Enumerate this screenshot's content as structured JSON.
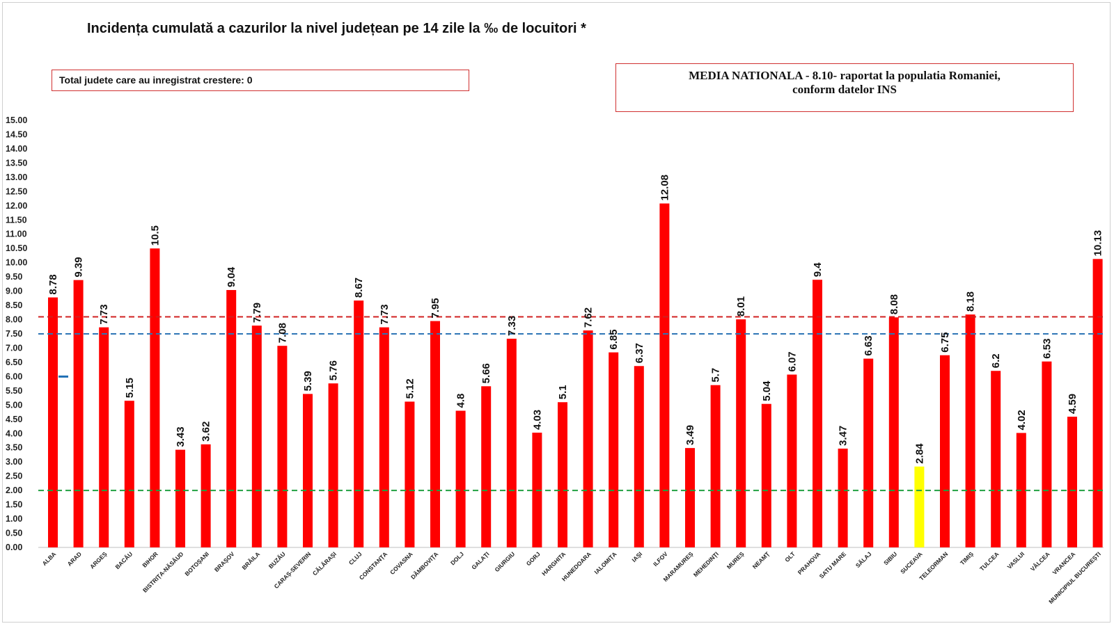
{
  "chart_data": {
    "type": "bar",
    "title": "Incidența cumulată a cazurilor la nivel județean pe 14 zile la ‰ de locuitori *",
    "xlabel": "",
    "ylabel": "",
    "ylim": [
      0,
      15
    ],
    "ytick_step": 0.5,
    "grid": false,
    "categories": [
      "ALBA",
      "ARAD",
      "ARGEȘ",
      "BACĂU",
      "BIHOR",
      "BISTRIȚA-NĂSĂUD",
      "BOTOȘANI",
      "BRAȘOV",
      "BRĂILA",
      "BUZĂU",
      "CARAȘ-SEVERIN",
      "CĂLĂRAȘI",
      "CLUJ",
      "CONSTANȚA",
      "COVASNA",
      "DÂMBOVIȚA",
      "DOLJ",
      "GALAȚI",
      "GIURGIU",
      "GORJ",
      "HARGHITA",
      "HUNEDOARA",
      "IALOMIȚA",
      "IAȘI",
      "ILFOV",
      "MARAMUREȘ",
      "MEHEDINȚI",
      "MUREȘ",
      "NEAMȚ",
      "OLT",
      "PRAHOVA",
      "SATU MARE",
      "SĂLAJ",
      "SIBIU",
      "SUCEAVA",
      "TELEORMAN",
      "TIMIȘ",
      "TULCEA",
      "VASLUI",
      "VÂLCEA",
      "VRANCEA",
      "MUNICIPIUL BUCUREȘTI"
    ],
    "values": [
      8.78,
      9.39,
      7.73,
      5.15,
      10.5,
      3.43,
      3.62,
      9.04,
      7.79,
      7.08,
      5.39,
      5.76,
      8.67,
      7.73,
      5.12,
      7.95,
      4.8,
      5.66,
      7.33,
      4.03,
      5.1,
      7.62,
      6.85,
      6.37,
      12.08,
      3.49,
      5.7,
      8.01,
      5.04,
      6.07,
      9.4,
      3.47,
      6.63,
      8.08,
      2.84,
      6.75,
      8.18,
      6.2,
      4.02,
      6.53,
      4.59,
      10.13
    ],
    "value_labels": [
      "8.78",
      "9.39",
      "7.73",
      "5.15",
      "10.5",
      "3.43",
      "3.62",
      "9.04",
      "7.79",
      "7.08",
      "5.39",
      "5.76",
      "8.67",
      "7.73",
      "5.12",
      "7.95",
      "4.8",
      "5.66",
      "7.33",
      "4.03",
      "5.1",
      "7.62",
      "6.85",
      "6.37",
      "12.08",
      "3.49",
      "5.7",
      "8.01",
      "5.04",
      "6.07",
      "9.4",
      "3.47",
      "6.63",
      "8.08",
      "2.84",
      "6.75",
      "8.18",
      "6.2",
      "4.02",
      "6.53",
      "4.59",
      "10.13"
    ],
    "bar_color": "#ff0000",
    "highlight": {
      "category": "SUCEAVA",
      "color": "#ffff00"
    },
    "reference_lines": [
      {
        "value": 8.1,
        "color": "#d02020",
        "style": "dashed"
      },
      {
        "value": 7.5,
        "color": "#2e75b6",
        "style": "dashed"
      },
      {
        "value": 2.0,
        "color": "#20a040",
        "style": "dashed"
      }
    ],
    "marker": {
      "value": 6.0,
      "color": "#1f6fb5"
    }
  },
  "annotations": {
    "counties_increase": "Total judete care au inregistrat crestere: 0",
    "national_line1": "MEDIA NATIONALA - 8.10-  raportat la populatia Romaniei,",
    "national_line2": "conform datelor INS"
  }
}
